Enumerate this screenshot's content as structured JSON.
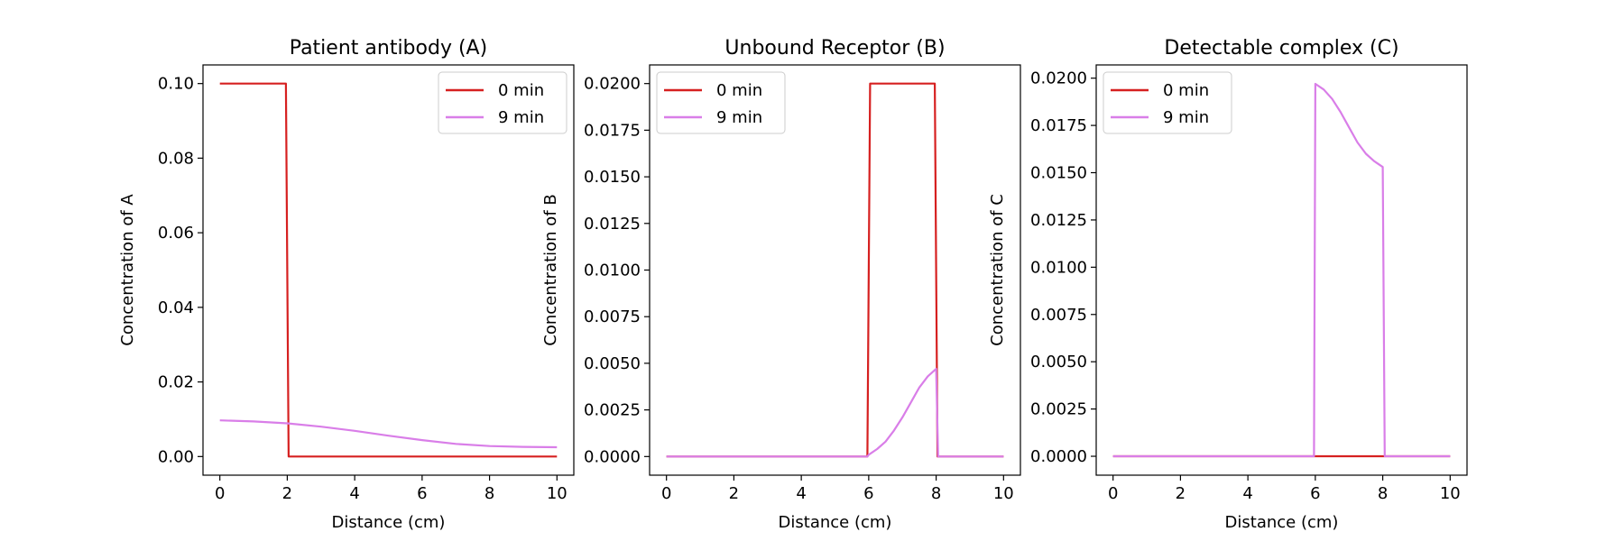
{
  "chart_data": [
    {
      "type": "line",
      "title": "Patient antibody (A)",
      "xlabel": "Distance (cm)",
      "ylabel": "Concentration of A",
      "xlim": [
        -0.5,
        10.5
      ],
      "ylim": [
        -0.005,
        0.105
      ],
      "xticks": [
        0,
        2,
        4,
        6,
        8,
        10
      ],
      "xtick_labels": [
        "0",
        "2",
        "4",
        "6",
        "8",
        "10"
      ],
      "yticks": [
        0.0,
        0.02,
        0.04,
        0.06,
        0.08,
        0.1
      ],
      "ytick_labels": [
        "0.00",
        "0.02",
        "0.04",
        "0.06",
        "0.08",
        "0.10"
      ],
      "legend_position": "top-right",
      "series": [
        {
          "name": "0 min",
          "color": "#d62020",
          "x": [
            0,
            1.96,
            2.04,
            10
          ],
          "y": [
            0.1,
            0.1,
            0.0,
            0.0
          ]
        },
        {
          "name": "9 min",
          "color": "#d97ee8",
          "x": [
            0,
            1,
            2,
            3,
            4,
            5,
            6,
            7,
            8,
            9,
            10
          ],
          "y": [
            0.0097,
            0.0094,
            0.0089,
            0.008,
            0.0069,
            0.0056,
            0.0044,
            0.0034,
            0.0028,
            0.0026,
            0.0025
          ]
        }
      ]
    },
    {
      "type": "line",
      "title": "Unbound Receptor (B)",
      "xlabel": "Distance (cm)",
      "ylabel": "Concentration of B",
      "xlim": [
        -0.5,
        10.5
      ],
      "ylim": [
        -0.001,
        0.021
      ],
      "xticks": [
        0,
        2,
        4,
        6,
        8,
        10
      ],
      "xtick_labels": [
        "0",
        "2",
        "4",
        "6",
        "8",
        "10"
      ],
      "yticks": [
        0.0,
        0.0025,
        0.005,
        0.0075,
        0.01,
        0.0125,
        0.015,
        0.0175,
        0.02
      ],
      "ytick_labels": [
        "0.0000",
        "0.0025",
        "0.0050",
        "0.0075",
        "0.0100",
        "0.0125",
        "0.0150",
        "0.0175",
        "0.0200"
      ],
      "legend_position": "top-left",
      "series": [
        {
          "name": "0 min",
          "color": "#d62020",
          "x": [
            0,
            5.96,
            6.04,
            7.96,
            8.04,
            10
          ],
          "y": [
            0.0,
            0.0,
            0.02,
            0.02,
            0.0,
            0.0
          ]
        },
        {
          "name": "9 min",
          "color": "#d97ee8",
          "x": [
            0,
            5.96,
            6.0,
            6.25,
            6.5,
            6.75,
            7.0,
            7.25,
            7.5,
            7.75,
            8.0,
            8.06,
            10
          ],
          "y": [
            0.0,
            0.0,
            0.0001,
            0.0004,
            0.0008,
            0.0014,
            0.0021,
            0.0029,
            0.0037,
            0.0043,
            0.0047,
            0.0,
            0.0
          ]
        }
      ]
    },
    {
      "type": "line",
      "title": "Detectable complex (C)",
      "xlabel": "Distance (cm)",
      "ylabel": "Concentration of C",
      "xlim": [
        -0.5,
        10.5
      ],
      "ylim": [
        -0.001,
        0.0207
      ],
      "xticks": [
        0,
        2,
        4,
        6,
        8,
        10
      ],
      "xtick_labels": [
        "0",
        "2",
        "4",
        "6",
        "8",
        "10"
      ],
      "yticks": [
        0.0,
        0.0025,
        0.005,
        0.0075,
        0.01,
        0.0125,
        0.015,
        0.0175,
        0.02
      ],
      "ytick_labels": [
        "0.0000",
        "0.0025",
        "0.0050",
        "0.0075",
        "0.0100",
        "0.0125",
        "0.0150",
        "0.0175",
        "0.0200"
      ],
      "legend_position": "top-left",
      "series": [
        {
          "name": "0 min",
          "color": "#d62020",
          "x": [
            0,
            10
          ],
          "y": [
            0.0,
            0.0
          ]
        },
        {
          "name": "9 min",
          "color": "#d97ee8",
          "x": [
            0,
            5.96,
            6.0,
            6.25,
            6.5,
            6.75,
            7.0,
            7.25,
            7.5,
            7.75,
            8.0,
            8.06,
            10
          ],
          "y": [
            0.0,
            0.0,
            0.0197,
            0.0194,
            0.0189,
            0.0182,
            0.0174,
            0.0166,
            0.016,
            0.0156,
            0.0153,
            0.0,
            0.0
          ]
        }
      ]
    }
  ]
}
